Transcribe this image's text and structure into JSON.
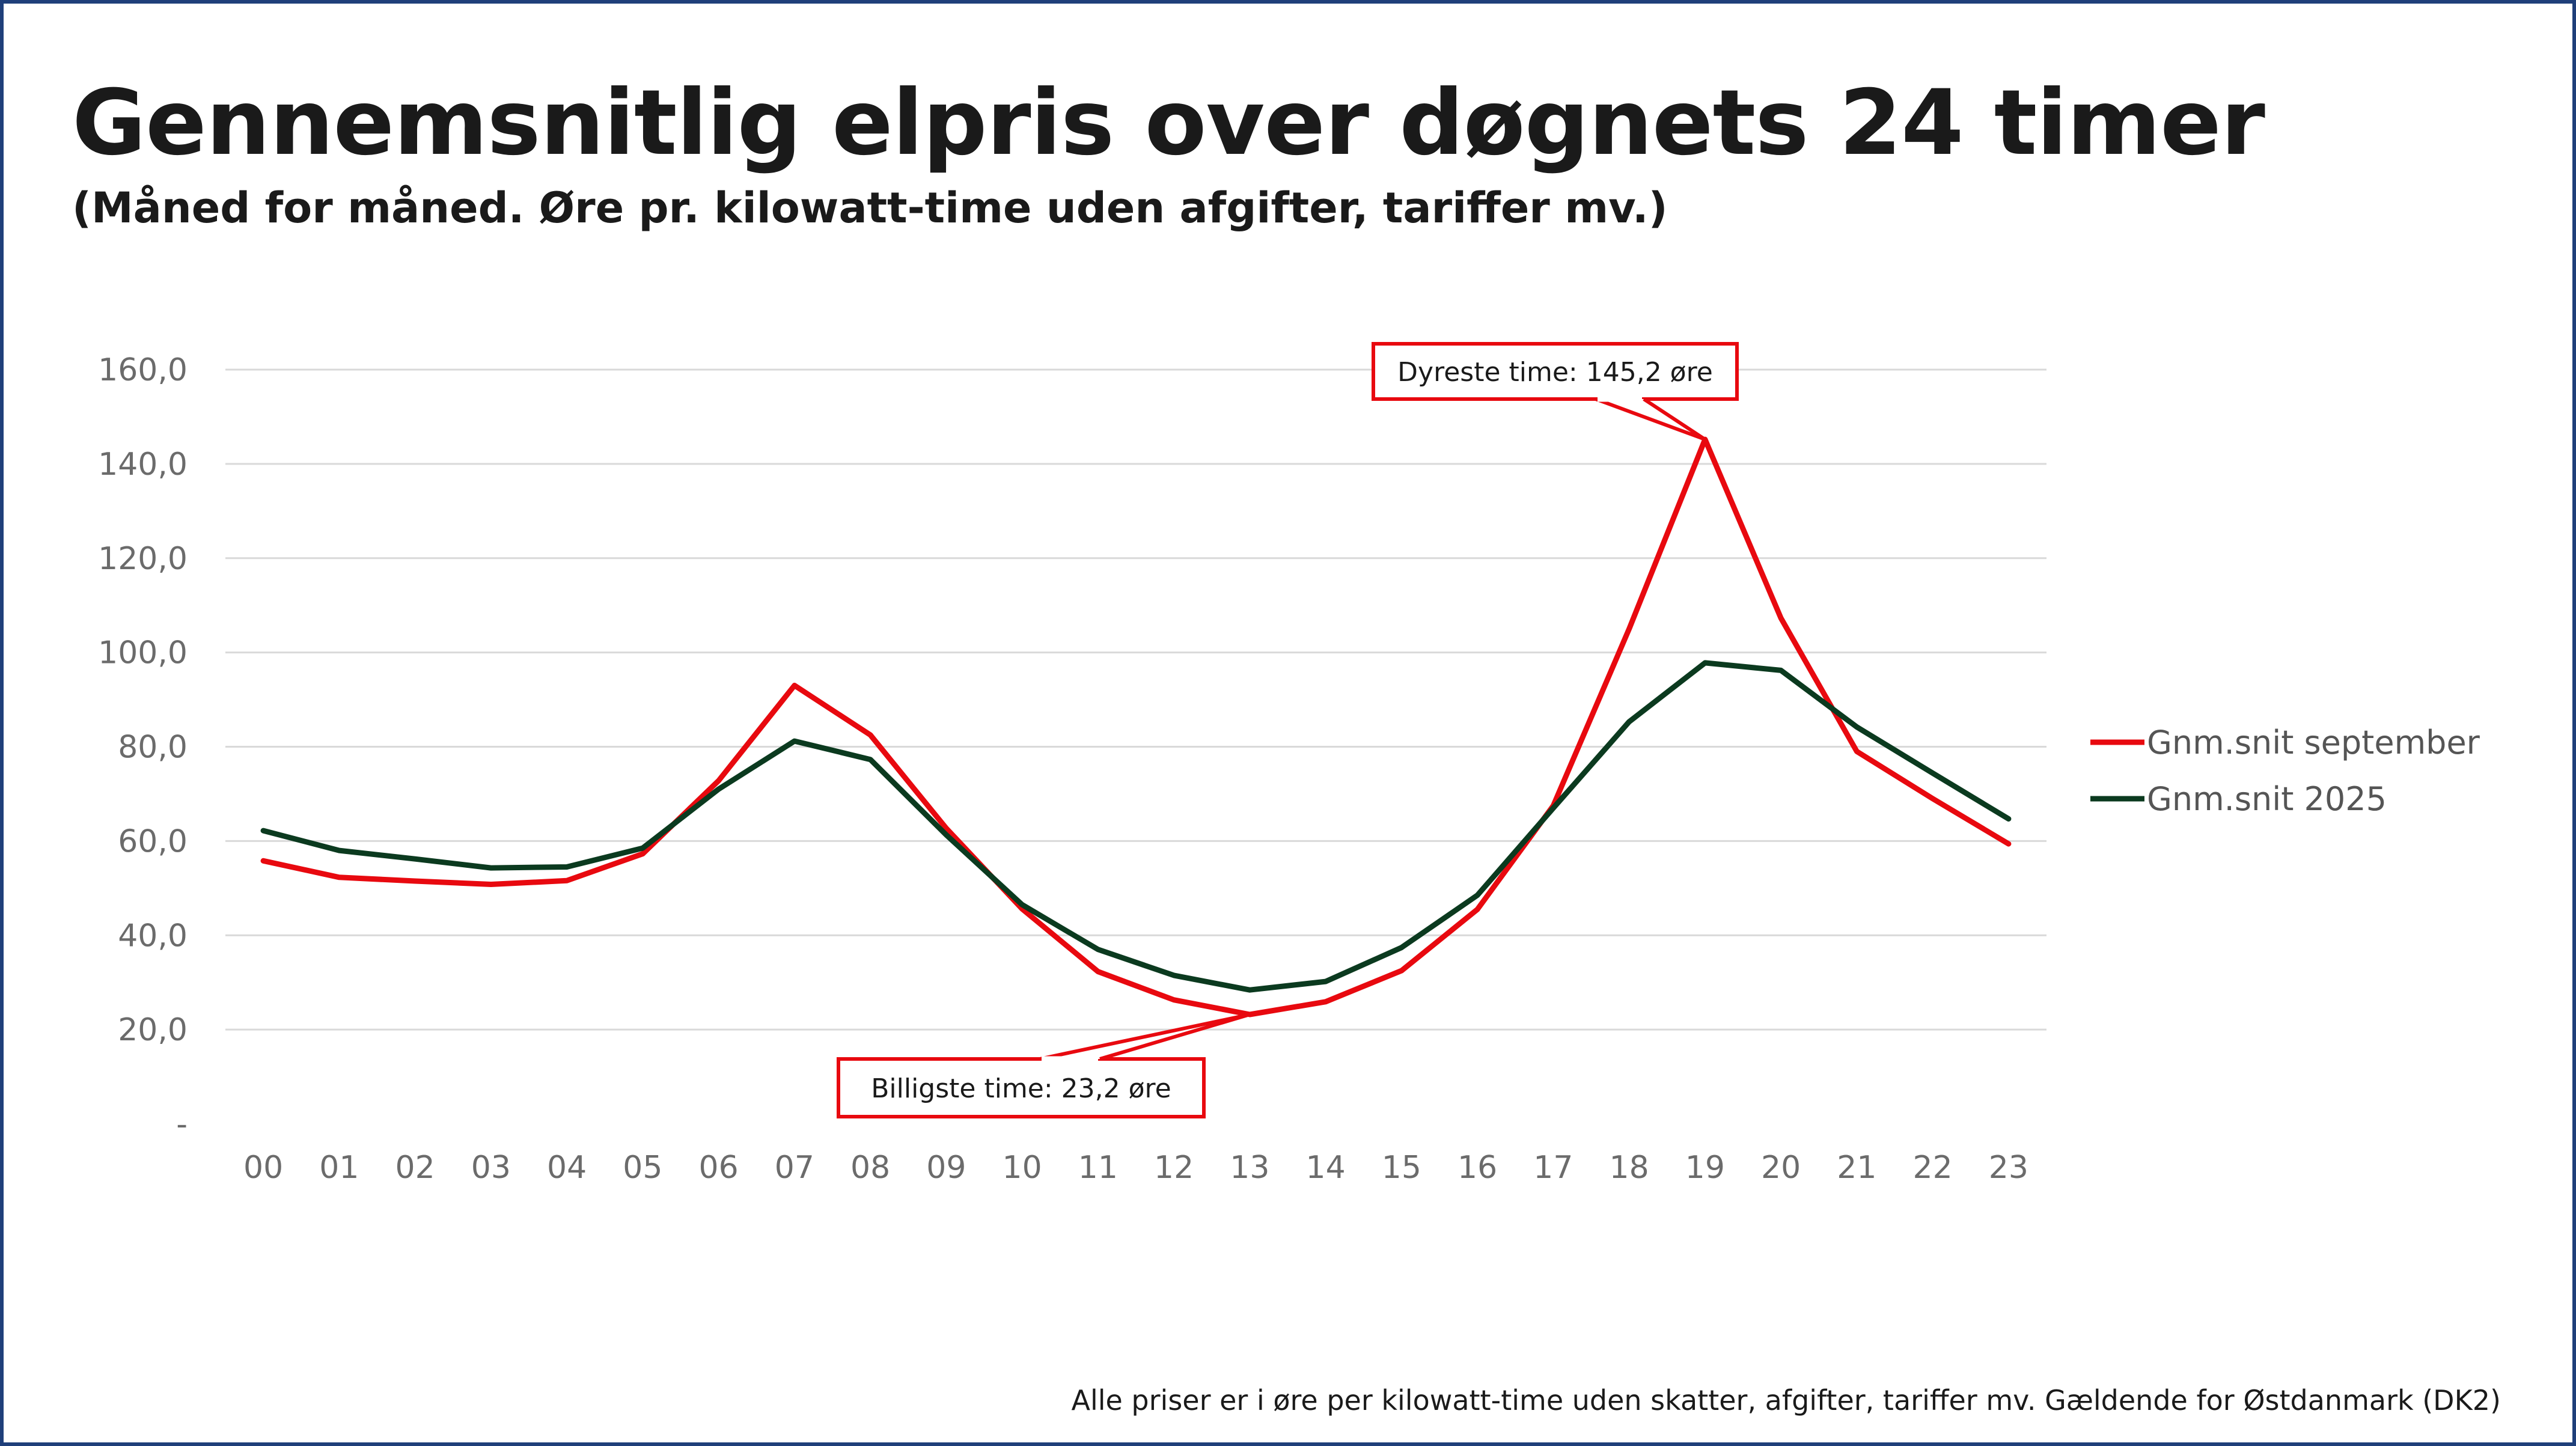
{
  "title": "Gennemsnitlig elpris over døgnets 24 timer",
  "subtitle": "(Måned for måned. Øre pr. kilowatt-time uden afgifter, tariffer mv.)",
  "footnote": "Alle priser er i øre per kilowatt-time uden skatter, afgifter, tariffer mv. Gældende for Østdanmark (DK2)",
  "colors": {
    "september": "#e8090f",
    "year": "#0b3a1f",
    "grid": "#d9d9d9",
    "frame": "#1f3f7a"
  },
  "chart_data": {
    "type": "line",
    "title": "Gennemsnitlig elpris over døgnets 24 timer",
    "xlabel": "",
    "ylabel": "",
    "categories": [
      "00",
      "01",
      "02",
      "03",
      "04",
      "05",
      "06",
      "07",
      "08",
      "09",
      "10",
      "11",
      "12",
      "13",
      "14",
      "15",
      "16",
      "17",
      "18",
      "19",
      "20",
      "21",
      "22",
      "23"
    ],
    "y_ticks": [
      0,
      20,
      40,
      60,
      80,
      100,
      120,
      140,
      160
    ],
    "y_tick_labels": [
      "-",
      "20,0",
      "40,0",
      "60,0",
      "80,0",
      "100,0",
      "120,0",
      "140,0",
      "160,0"
    ],
    "ylim": [
      0,
      160
    ],
    "grid": true,
    "legend_position": "right",
    "series": [
      {
        "name": "Gnm.snit september",
        "color": "#e8090f",
        "values": [
          55.8,
          52.3,
          51.5,
          50.8,
          51.6,
          57.3,
          72.8,
          93.0,
          82.5,
          62.7,
          45.6,
          32.3,
          26.3,
          23.2,
          25.9,
          32.5,
          45.5,
          67.5,
          105.0,
          145.2,
          107.3,
          79.0,
          69.0,
          59.4
        ]
      },
      {
        "name": "Gnm.snit 2025",
        "color": "#0b3a1f",
        "values": [
          62.2,
          58.0,
          56.2,
          54.3,
          54.5,
          58.5,
          71.0,
          81.2,
          77.3,
          61.3,
          46.5,
          37.0,
          31.5,
          28.4,
          30.2,
          37.4,
          48.5,
          67.0,
          85.3,
          97.8,
          96.2,
          84.2,
          74.4,
          64.7
        ]
      }
    ],
    "annotations": [
      {
        "text": "Dyreste time: 145,2 øre",
        "x": "19",
        "y": 145.2
      },
      {
        "text": "Billigste time: 23,2 øre",
        "x": "13",
        "y": 23.2
      }
    ]
  }
}
